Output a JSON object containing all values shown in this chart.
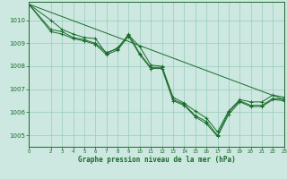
{
  "background_color": "#cce8e0",
  "grid_color": "#99ccbb",
  "line_color": "#1a6b2a",
  "xlabel": "Graphe pression niveau de la mer (hPa)",
  "xlim": [
    0,
    23
  ],
  "ylim": [
    1004.5,
    1010.8
  ],
  "yticks": [
    1005,
    1006,
    1007,
    1008,
    1009,
    1010
  ],
  "xticks": [
    0,
    2,
    3,
    4,
    5,
    6,
    7,
    8,
    9,
    10,
    11,
    12,
    13,
    14,
    15,
    16,
    17,
    18,
    19,
    20,
    21,
    22,
    23
  ],
  "lines": [
    {
      "x": [
        0,
        2,
        3,
        4,
        5,
        6,
        7,
        8,
        9,
        10,
        11,
        12,
        13,
        14,
        15,
        16,
        17,
        18,
        19,
        20,
        21,
        22,
        23
      ],
      "y": [
        1010.7,
        1010.0,
        1009.6,
        1009.4,
        1009.25,
        1009.2,
        1008.55,
        1008.8,
        1009.35,
        1008.85,
        1008.05,
        1008.0,
        1006.65,
        1006.4,
        1006.05,
        1005.75,
        1005.15,
        1006.05,
        1006.55,
        1006.45,
        1006.45,
        1006.75,
        1006.65
      ],
      "marker": "+"
    },
    {
      "x": [
        0,
        2,
        3,
        4,
        5,
        6,
        7,
        8,
        9,
        10,
        11,
        12,
        13,
        14,
        15,
        16,
        17,
        18,
        19,
        20,
        21,
        22,
        23
      ],
      "y": [
        1010.7,
        1009.6,
        1009.5,
        1009.25,
        1009.15,
        1009.0,
        1008.6,
        1008.75,
        1009.4,
        1008.55,
        1007.95,
        1007.95,
        1006.55,
        1006.35,
        1005.85,
        1005.6,
        1005.0,
        1006.0,
        1006.5,
        1006.3,
        1006.3,
        1006.6,
        1006.55
      ],
      "marker": "+"
    },
    {
      "x": [
        0,
        2,
        3,
        4,
        5,
        6,
        7,
        8,
        9,
        10,
        11,
        12,
        13,
        14,
        15,
        16,
        17,
        18,
        19,
        20,
        21,
        22,
        23
      ],
      "y": [
        1010.7,
        1009.5,
        1009.4,
        1009.2,
        1009.1,
        1008.95,
        1008.5,
        1008.7,
        1009.3,
        1008.5,
        1007.9,
        1007.9,
        1006.5,
        1006.3,
        1005.8,
        1005.5,
        1004.95,
        1005.9,
        1006.45,
        1006.25,
        1006.25,
        1006.55,
        1006.5
      ],
      "marker": "+"
    },
    {
      "x": [
        0,
        23
      ],
      "y": [
        1010.7,
        1006.55
      ],
      "marker": null
    }
  ]
}
